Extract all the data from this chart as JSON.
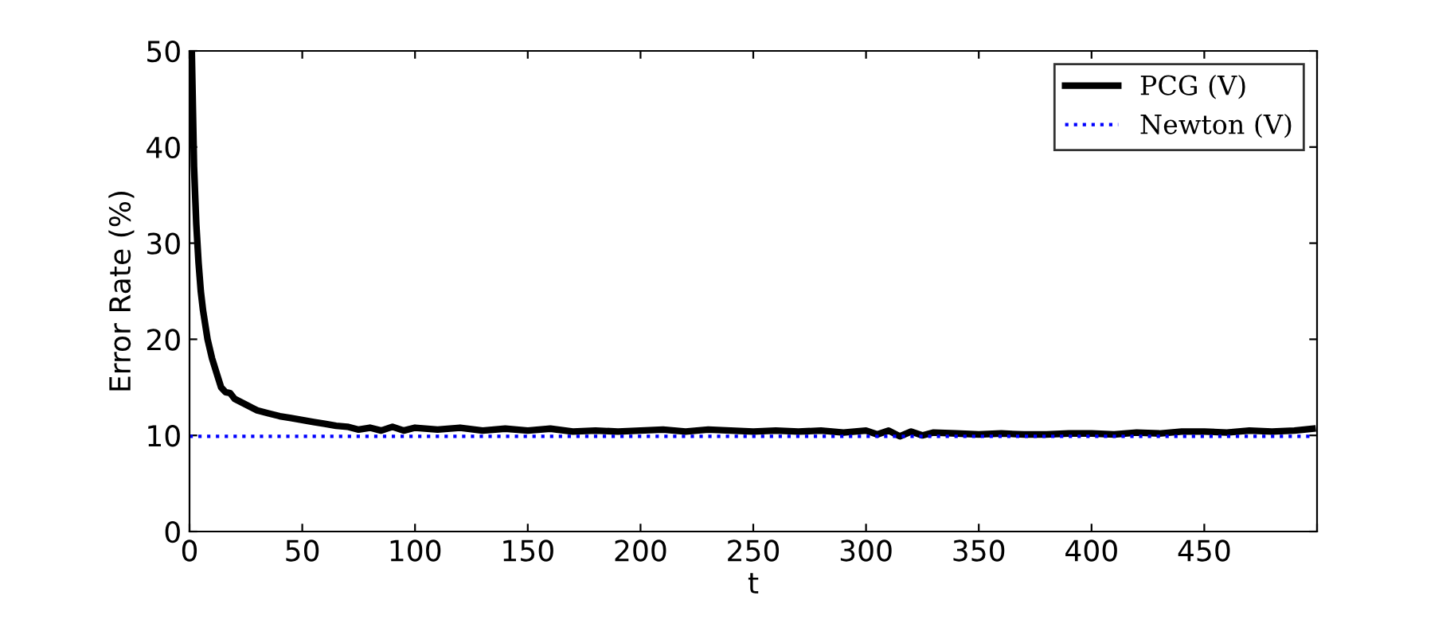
{
  "chart_data": {
    "type": "line",
    "xlabel": "t",
    "ylabel": "Error Rate (%)",
    "xlim": [
      0,
      500
    ],
    "ylim": [
      0,
      50
    ],
    "xticks": [
      0,
      50,
      100,
      150,
      200,
      250,
      300,
      350,
      400,
      450,
      {
        "value": 500,
        "label": null
      }
    ],
    "yticks": [
      0,
      10,
      20,
      30,
      40,
      50
    ],
    "grid": false,
    "legend": "top right",
    "marker": "none",
    "series": [
      {
        "name": "PCG (V)",
        "color": "#000000",
        "line_style": "solid",
        "x": [
          1,
          2,
          3,
          4,
          5,
          6,
          8,
          10,
          12,
          14,
          16,
          18,
          20,
          25,
          30,
          35,
          40,
          45,
          50,
          55,
          60,
          65,
          70,
          75,
          80,
          85,
          90,
          95,
          100,
          110,
          120,
          130,
          140,
          150,
          160,
          170,
          180,
          190,
          200,
          210,
          220,
          230,
          240,
          250,
          260,
          270,
          280,
          290,
          300,
          305,
          310,
          315,
          320,
          325,
          330,
          340,
          350,
          360,
          370,
          380,
          390,
          400,
          410,
          420,
          430,
          440,
          450,
          460,
          470,
          480,
          490,
          498
        ],
        "values": [
          50,
          38,
          32,
          28,
          25,
          23,
          20,
          18,
          16.5,
          15,
          14.5,
          14.4,
          13.8,
          13.2,
          12.6,
          12.3,
          12,
          11.8,
          11.6,
          11.4,
          11.2,
          11,
          10.9,
          10.6,
          10.8,
          10.5,
          10.9,
          10.5,
          10.8,
          10.6,
          10.8,
          10.5,
          10.7,
          10.5,
          10.7,
          10.4,
          10.5,
          10.4,
          10.5,
          10.6,
          10.4,
          10.6,
          10.5,
          10.4,
          10.5,
          10.4,
          10.5,
          10.3,
          10.5,
          10.1,
          10.5,
          9.9,
          10.4,
          10,
          10.3,
          10.2,
          10.1,
          10.2,
          10.1,
          10.1,
          10.2,
          10.2,
          10.1,
          10.3,
          10.2,
          10.4,
          10.4,
          10.3,
          10.5,
          10.4,
          10.5,
          10.7
        ]
      },
      {
        "name": "Newton (V)",
        "color": "#0000ff",
        "line_style": "dotted",
        "x": [
          0,
          498
        ],
        "values": [
          9.9,
          9.9
        ]
      }
    ]
  }
}
